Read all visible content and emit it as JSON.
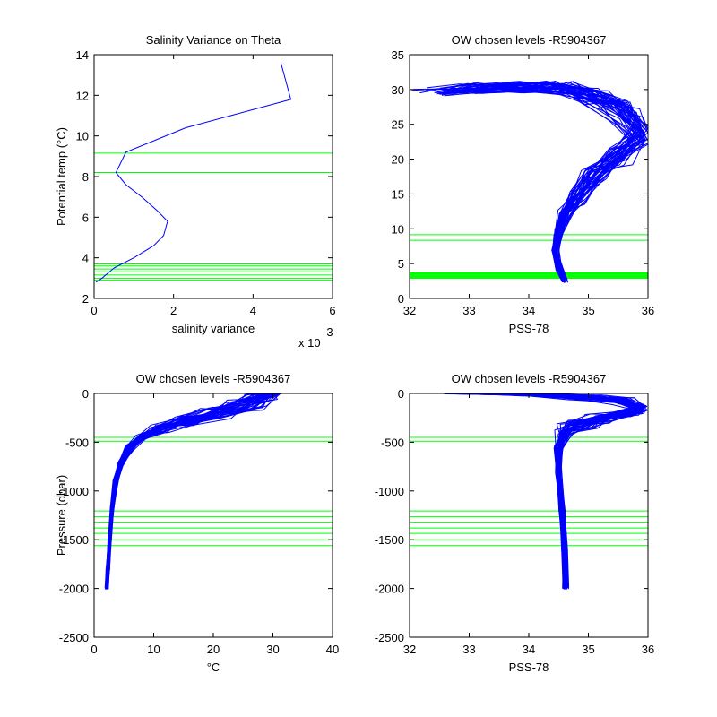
{
  "figure": {
    "colors": {
      "profile": "#0000ff",
      "levels": "#00ff00",
      "axes": "#000000",
      "background": "#ffffff"
    }
  },
  "chart_data": [
    {
      "type": "line",
      "title": "Salinity Variance on Theta",
      "xlabel": "salinity variance",
      "ylabel": "Potential temp (°C)",
      "x_exponent_label": "x 10",
      "x_exponent_power": "-3",
      "xlim": [
        0,
        6
      ],
      "ylim": [
        2,
        14
      ],
      "xticks": [
        0,
        2,
        4,
        6
      ],
      "yticks": [
        2,
        4,
        6,
        8,
        10,
        12,
        14
      ],
      "series": [
        {
          "x": [
            4.7,
            4.95,
            2.3,
            0.8,
            0.55,
            0.8,
            1.2,
            1.6,
            1.85,
            1.75,
            1.5,
            1.0,
            0.5,
            0.2,
            0.05
          ],
          "y": [
            13.6,
            11.8,
            10.4,
            9.2,
            8.2,
            7.6,
            7.0,
            6.3,
            5.8,
            5.1,
            4.6,
            4.0,
            3.5,
            3.0,
            2.8
          ]
        }
      ],
      "hlines": [
        9.15,
        8.2,
        3.7,
        3.6,
        3.45,
        3.3,
        3.15,
        3.0,
        2.9
      ]
    },
    {
      "type": "line",
      "title": "OW chosen levels -R5904367",
      "xlabel": "PSS-78",
      "ylabel": "",
      "xlim": [
        32,
        36
      ],
      "ylim": [
        0,
        35
      ],
      "xticks": [
        32,
        33,
        34,
        35,
        36
      ],
      "yticks": [
        0,
        5,
        10,
        15,
        20,
        25,
        30,
        35
      ],
      "bundle": {
        "count": 45,
        "x": [
          32.7,
          33.3,
          34.0,
          34.6,
          35.1,
          35.6,
          35.9,
          35.5,
          35.1,
          34.8,
          34.6,
          34.5,
          34.45,
          34.5,
          34.6
        ],
        "y": [
          29.7,
          30.2,
          30.4,
          30.2,
          29.0,
          27.0,
          23.5,
          20.5,
          17.5,
          14.5,
          12.0,
          9.5,
          7.0,
          4.5,
          2.5
        ],
        "x_spread": [
          0.6,
          0.5,
          0.4,
          0.3,
          0.3,
          0.3,
          0.15,
          0.25,
          0.2,
          0.15,
          0.1,
          0.08,
          0.06,
          0.05,
          0.05
        ],
        "y_spread": [
          0.6,
          0.8,
          0.9,
          1.0,
          1.2,
          1.5,
          1.5,
          1.5,
          1.2,
          1.0,
          0.8,
          0.6,
          0.5,
          0.4,
          0.3
        ]
      },
      "hlines": [
        9.15,
        8.35,
        3.7,
        3.6,
        3.5,
        3.4,
        3.3,
        3.2,
        3.1,
        3.0,
        2.9
      ]
    },
    {
      "type": "line",
      "title": "OW chosen levels -R5904367",
      "xlabel": "°C",
      "ylabel": "Pressure (dbar)",
      "xlim": [
        0,
        40
      ],
      "ylim": [
        -2500,
        0
      ],
      "xticks": [
        0,
        10,
        20,
        30,
        40
      ],
      "yticks": [
        -2500,
        -2000,
        -1500,
        -1000,
        -500,
        0
      ],
      "bundle": {
        "count": 45,
        "x": [
          30,
          28,
          25,
          20,
          15,
          11,
          8,
          6,
          4.5,
          3.6,
          3.0,
          2.6,
          2.3,
          2.1
        ],
        "y": [
          0,
          -40,
          -120,
          -200,
          -280,
          -360,
          -450,
          -560,
          -720,
          -900,
          -1200,
          -1500,
          -1800,
          -2000
        ],
        "x_spread": [
          1.5,
          3,
          3.5,
          3,
          2.5,
          1.5,
          1,
          0.7,
          0.5,
          0.4,
          0.3,
          0.3,
          0.3,
          0.3
        ],
        "y_spread": [
          10,
          40,
          60,
          60,
          50,
          40,
          30,
          30,
          30,
          20,
          10,
          10,
          10,
          10
        ]
      },
      "hlines": [
        -450,
        -490,
        -1205,
        -1265,
        -1320,
        -1380,
        -1435,
        -1500,
        -1560
      ]
    },
    {
      "type": "line",
      "title": "OW chosen levels -R5904367",
      "xlabel": "PSS-78",
      "ylabel": "",
      "xlim": [
        32,
        36
      ],
      "ylim": [
        -2500,
        0
      ],
      "xticks": [
        32,
        33,
        34,
        35,
        36
      ],
      "yticks": [
        -2500,
        -2000,
        -1500,
        -1000,
        -500,
        0
      ],
      "bundle": {
        "count": 45,
        "x": [
          32.7,
          33.5,
          34.3,
          35.0,
          35.6,
          35.9,
          35.7,
          35.2,
          34.8,
          34.6,
          34.5,
          34.5,
          34.55,
          34.6,
          34.62
        ],
        "y": [
          0,
          -5,
          -15,
          -40,
          -80,
          -150,
          -200,
          -260,
          -320,
          -400,
          -550,
          -800,
          -1200,
          -1600,
          -2000
        ],
        "x_spread": [
          0.2,
          0.4,
          0.4,
          0.3,
          0.2,
          0.1,
          0.2,
          0.3,
          0.3,
          0.15,
          0.08,
          0.05,
          0.05,
          0.05,
          0.05
        ],
        "y_spread": [
          5,
          8,
          15,
          25,
          40,
          40,
          40,
          50,
          50,
          40,
          30,
          20,
          10,
          10,
          10
        ]
      },
      "hlines": [
        -450,
        -490,
        -1205,
        -1265,
        -1320,
        -1380,
        -1435,
        -1500,
        -1560
      ]
    }
  ]
}
